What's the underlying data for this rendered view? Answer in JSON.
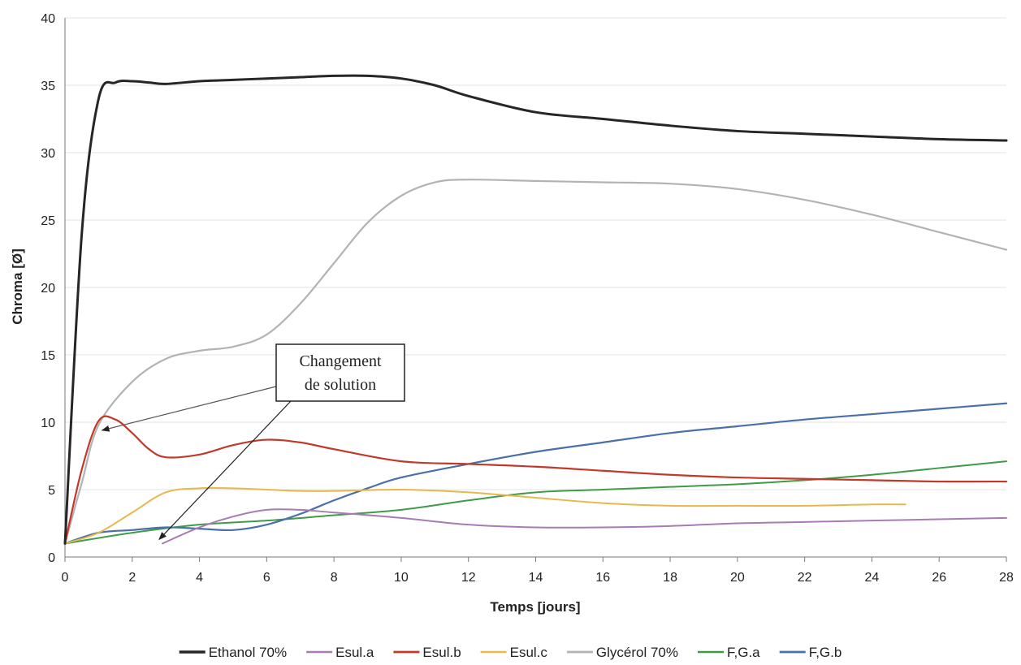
{
  "chart_data": {
    "type": "line",
    "xlabel": "Temps [jours]",
    "ylabel": "Chroma [Ø]",
    "xlim": [
      0,
      28
    ],
    "ylim": [
      0,
      40
    ],
    "xticks": [
      0,
      2,
      4,
      6,
      8,
      10,
      12,
      14,
      16,
      18,
      20,
      22,
      24,
      26,
      28
    ],
    "yticks": [
      0,
      5,
      10,
      15,
      20,
      25,
      30,
      35,
      40
    ],
    "grid": "horizontal",
    "legend_position": "bottom",
    "annotation": {
      "lines": [
        "Changement",
        "de solution"
      ],
      "points_to": [
        [
          1.1,
          9.4
        ],
        [
          2.8,
          1.3
        ]
      ]
    },
    "series": [
      {
        "name": "Ethanol 70%",
        "color": "#262626",
        "width": 3,
        "x": [
          0,
          0.5,
          1,
          1.5,
          2,
          2.5,
          3,
          4,
          5,
          6,
          7,
          8,
          9,
          10,
          11,
          12,
          14,
          16,
          18,
          20,
          22,
          24,
          26,
          28
        ],
        "y": [
          1,
          24,
          34,
          35.2,
          35.3,
          35.2,
          35.1,
          35.3,
          35.4,
          35.5,
          35.6,
          35.7,
          35.7,
          35.5,
          35,
          34.2,
          33,
          32.5,
          32,
          31.6,
          31.4,
          31.2,
          31,
          30.9
        ]
      },
      {
        "name": "Esul.a",
        "color": "#a97bb5",
        "width": 2,
        "x": [
          2.9,
          4,
          5,
          6,
          7,
          8,
          10,
          12,
          14,
          16,
          18,
          20,
          22,
          24,
          26,
          28
        ],
        "y": [
          1,
          2.2,
          3,
          3.5,
          3.5,
          3.3,
          2.9,
          2.4,
          2.2,
          2.2,
          2.3,
          2.5,
          2.6,
          2.7,
          2.8,
          2.9
        ]
      },
      {
        "name": "Esul.b",
        "color": "#c0392b",
        "width": 2.2,
        "x": [
          0,
          0.5,
          1,
          1.5,
          2,
          2.5,
          3,
          4,
          5,
          6,
          7,
          8,
          10,
          12,
          14,
          16,
          18,
          20,
          22,
          24,
          26,
          28
        ],
        "y": [
          1,
          6.5,
          10.1,
          10.2,
          9.2,
          8,
          7.4,
          7.6,
          8.3,
          8.7,
          8.5,
          8,
          7.1,
          6.9,
          6.7,
          6.4,
          6.1,
          5.9,
          5.8,
          5.7,
          5.6,
          5.6
        ]
      },
      {
        "name": "Esul.c",
        "color": "#e7b84a",
        "width": 2,
        "x": [
          0,
          1,
          2,
          3,
          4,
          5,
          6,
          7,
          8,
          10,
          12,
          14,
          16,
          18,
          20,
          22,
          24,
          25
        ],
        "y": [
          1,
          1.8,
          3.3,
          4.8,
          5.1,
          5.1,
          5,
          4.9,
          4.9,
          5,
          4.8,
          4.4,
          4,
          3.8,
          3.8,
          3.8,
          3.9,
          3.9
        ]
      },
      {
        "name": "Glycérol 70%",
        "color": "#b3b3b3",
        "width": 2.2,
        "x": [
          0,
          0.5,
          1,
          2,
          3,
          4,
          5,
          6,
          7,
          8,
          9,
          10,
          11,
          12,
          14,
          16,
          18,
          20,
          22,
          24,
          26,
          28
        ],
        "y": [
          1,
          5.5,
          9.8,
          13,
          14.7,
          15.3,
          15.6,
          16.5,
          18.8,
          21.8,
          24.8,
          26.8,
          27.8,
          28,
          27.9,
          27.8,
          27.7,
          27.3,
          26.5,
          25.4,
          24.1,
          22.8
        ]
      },
      {
        "name": "F,G.a",
        "color": "#3f9b47",
        "width": 2,
        "x": [
          0,
          2,
          4,
          6,
          8,
          10,
          12,
          14,
          16,
          18,
          20,
          22,
          24,
          26,
          28
        ],
        "y": [
          1,
          1.8,
          2.4,
          2.7,
          3.1,
          3.5,
          4.2,
          4.8,
          5,
          5.2,
          5.4,
          5.7,
          6.1,
          6.6,
          7.1
        ]
      },
      {
        "name": "F,G.b",
        "color": "#4a6fa9",
        "width": 2.2,
        "x": [
          0,
          1,
          2,
          3,
          4,
          5,
          6,
          7,
          8,
          9,
          10,
          12,
          14,
          16,
          18,
          20,
          22,
          24,
          26,
          28
        ],
        "y": [
          1,
          1.8,
          2,
          2.2,
          2.1,
          2,
          2.4,
          3.2,
          4.2,
          5.1,
          5.9,
          6.9,
          7.8,
          8.5,
          9.2,
          9.7,
          10.2,
          10.6,
          11,
          11.4
        ]
      }
    ]
  }
}
